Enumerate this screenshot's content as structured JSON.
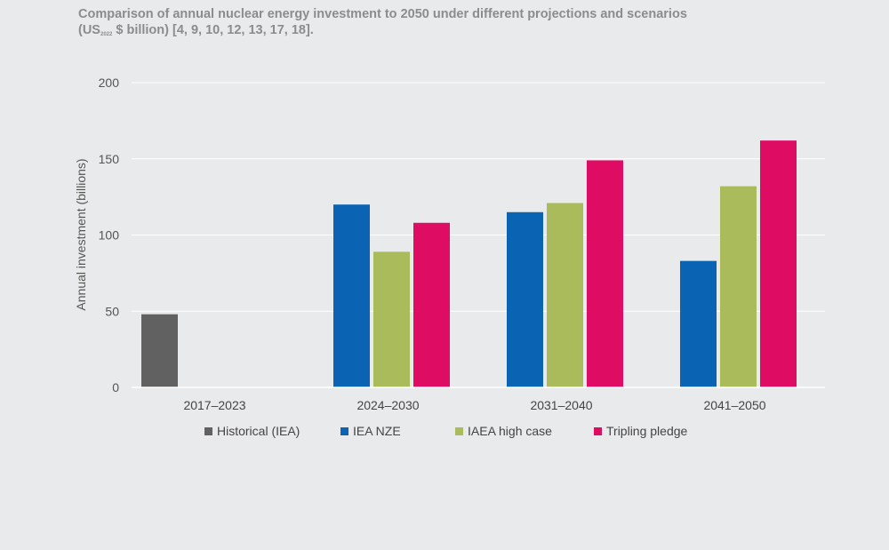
{
  "title": {
    "line1": "Comparison of annual nuclear energy investment to 2050 under different projections and scenarios",
    "line2_prefix": "(US",
    "line2_sub": "2022",
    "line2_suffix": " $ billion) [4, 9, 10, 12, 13, 17, 18]."
  },
  "chart_data": {
    "type": "bar",
    "ylabel": "Annual investment (billions)",
    "xlabel": "",
    "ylim": [
      0,
      200
    ],
    "yticks": [
      0,
      50,
      100,
      150,
      200
    ],
    "grid": true,
    "legend_position": "bottom",
    "categories": [
      "2017–2023",
      "2024–2030",
      "2031–2040",
      "2041–2050"
    ],
    "series": [
      {
        "name": "Historical (IEA)",
        "color": "#616161",
        "values": [
          48,
          null,
          null,
          null
        ]
      },
      {
        "name": "IEA NZE",
        "color": "#0a63b3",
        "values": [
          null,
          120,
          115,
          83
        ]
      },
      {
        "name": "IAEA high case",
        "color": "#a9bb5a",
        "values": [
          null,
          89,
          121,
          132
        ]
      },
      {
        "name": "Tripling pledge",
        "color": "#de0c63",
        "values": [
          null,
          108,
          149,
          162
        ]
      }
    ]
  }
}
